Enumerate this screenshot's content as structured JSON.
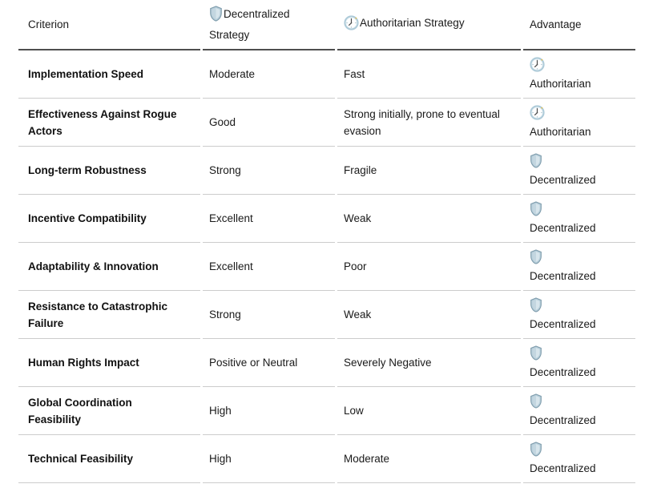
{
  "table": {
    "columns": [
      {
        "label": "Criterion",
        "icon": null
      },
      {
        "label": "Decentralized Strategy",
        "icon": "shield"
      },
      {
        "label": "Authoritarian Strategy",
        "icon": "clock"
      },
      {
        "label": "Advantage",
        "icon": null
      }
    ],
    "rows": [
      {
        "criterion": "Implementation Speed",
        "decentralized": "Moderate",
        "authoritarian": "Fast",
        "advantage": {
          "label": "Authoritarian",
          "icon": "clock"
        }
      },
      {
        "criterion": "Effectiveness Against Rogue Actors",
        "decentralized": "Good",
        "authoritarian": "Strong initially, prone to eventual evasion",
        "advantage": {
          "label": "Authoritarian",
          "icon": "clock"
        }
      },
      {
        "criterion": "Long-term Robustness",
        "decentralized": "Strong",
        "authoritarian": "Fragile",
        "advantage": {
          "label": "Decentralized",
          "icon": "shield"
        }
      },
      {
        "criterion": "Incentive Compatibility",
        "decentralized": "Excellent",
        "authoritarian": "Weak",
        "advantage": {
          "label": "Decentralized",
          "icon": "shield"
        }
      },
      {
        "criterion": "Adaptability & Innovation",
        "decentralized": "Excellent",
        "authoritarian": "Poor",
        "advantage": {
          "label": "Decentralized",
          "icon": "shield"
        }
      },
      {
        "criterion": "Resistance to Catastrophic Failure",
        "decentralized": "Strong",
        "authoritarian": "Weak",
        "advantage": {
          "label": "Decentralized",
          "icon": "shield"
        }
      },
      {
        "criterion": "Human Rights Impact",
        "decentralized": "Positive or Neutral",
        "authoritarian": "Severely Negative",
        "advantage": {
          "label": "Decentralized",
          "icon": "shield"
        }
      },
      {
        "criterion": "Global Coordination Feasibility",
        "decentralized": "High",
        "authoritarian": "Low",
        "advantage": {
          "label": "Decentralized",
          "icon": "shield"
        }
      },
      {
        "criterion": "Technical Feasibility",
        "decentralized": "High",
        "authoritarian": "Moderate",
        "advantage": {
          "label": "Decentralized",
          "icon": "shield"
        }
      }
    ]
  },
  "colors": {
    "text": "#1a1a1a",
    "header_border": "#4f4f4f",
    "row_border": "#cccccc",
    "shield_fill": "#b7ceda",
    "shield_stroke": "#7d9bab",
    "shield_inner": "#d7e5ec",
    "shield_mid": "#c3d6e0",
    "clock_ring": "#aecbd9",
    "clock_face": "#f2f8fa",
    "clock_hands": "#474747",
    "clock_dots": "#9db9c6",
    "clock_accent": "#e2bf4e"
  }
}
